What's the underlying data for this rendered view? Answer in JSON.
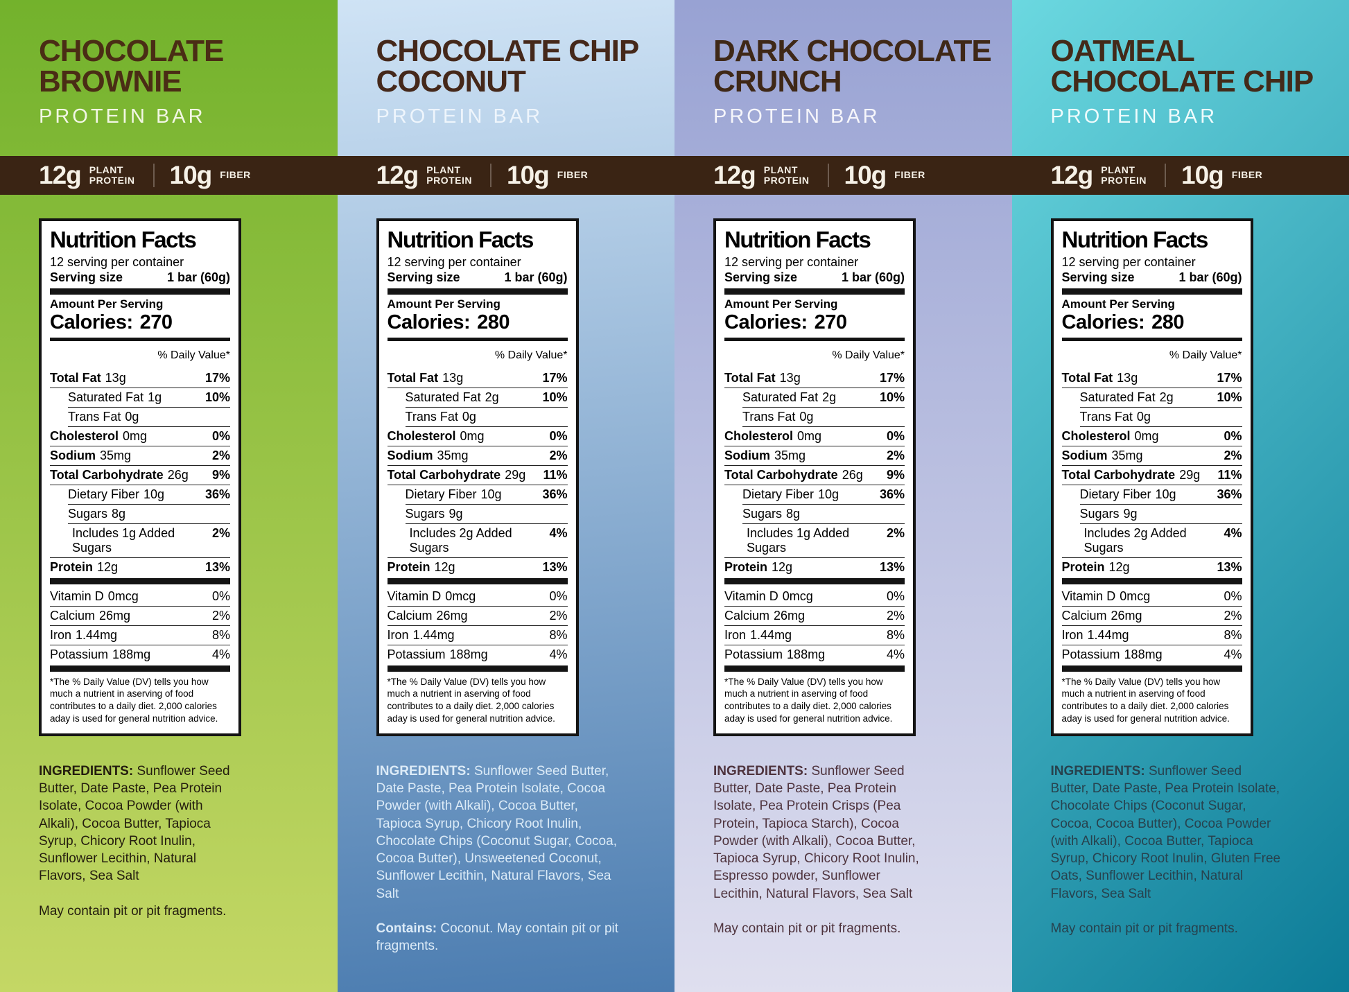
{
  "shared": {
    "subtitle": "PROTEIN BAR",
    "band": {
      "protein_value": "12g",
      "protein_label_line1": "PLANT",
      "protein_label_line2": "PROTEIN",
      "fiber_value": "10g",
      "fiber_label": "FIBER"
    },
    "label": {
      "heading": "Nutrition Facts",
      "servings": "12 serving per container",
      "serving_size_label": "Serving size",
      "serving_size_value": "1 bar (60g)",
      "amount_per_serving": "Amount Per Serving",
      "calories_prefix": "Calories:",
      "daily_value_header": "% Daily Value*",
      "footnote": "*The % Daily Value (DV) tells you how much a nutrient in aserving of food contributes to a daily diet. 2,000 calories aday is used for general nutrition advice."
    },
    "ingredients_label": "INGREDIENTS:",
    "colors": {
      "band_bg": "#3a2414",
      "band_text": "#f6f1e7",
      "band_divider": "#6e5c4f"
    }
  },
  "panels": [
    {
      "title_line1": "CHOCOLATE",
      "title_line2": "BROWNIE",
      "calories": "270",
      "rows": [
        {
          "name": "Total Fat",
          "qty": "13g",
          "dv": "17%"
        },
        {
          "name": "Saturated Fat",
          "qty": "1g",
          "dv": "10%"
        },
        {
          "name": "Trans Fat",
          "qty": "0g",
          "dv": ""
        },
        {
          "name": "Cholesterol",
          "qty": "0mg",
          "dv": "0%"
        },
        {
          "name": "Sodium",
          "qty": "35mg",
          "dv": "2%"
        },
        {
          "name": "Total Carbohydrate",
          "qty": "26g",
          "dv": "9%"
        },
        {
          "name": "Dietary Fiber",
          "qty": "10g",
          "dv": "36%"
        },
        {
          "name": "Sugars",
          "qty": "8g",
          "dv": ""
        },
        {
          "name": "Includes 1g Added Sugars",
          "qty": "",
          "dv": "2%"
        },
        {
          "name": "Protein",
          "qty": "12g",
          "dv": "13%"
        }
      ],
      "vitamins": [
        {
          "name": "Vitamin D",
          "qty": "0mcg",
          "dv": "0%"
        },
        {
          "name": "Calcium",
          "qty": "26mg",
          "dv": "2%"
        },
        {
          "name": "Iron",
          "qty": "1.44mg",
          "dv": "8%"
        },
        {
          "name": "Potassium",
          "qty": "188mg",
          "dv": "4%"
        }
      ],
      "ingredients": "Sunflower Seed Butter, Date Paste, Pea Protein Isolate, Cocoa Powder (with Alkali), Cocoa Butter, Tapioca Syrup, Chicory Root Inulin, Sunflower Lecithin, Natural Flavors, Sea Salt",
      "allergen_prefix": "",
      "allergen_body": "May contain pit or pit fragments.",
      "theme": {
        "bg_top": "#73b22c",
        "bg_bottom": "#c4d765",
        "title_color": "#4a2d15",
        "subtitle_color": "#f2f6e4",
        "ing_color": "#231c0e"
      }
    },
    {
      "title_line1": "CHOCOLATE CHIP",
      "title_line2": "COCONUT",
      "calories": "280",
      "rows": [
        {
          "name": "Total Fat",
          "qty": "13g",
          "dv": "17%"
        },
        {
          "name": "Saturated Fat",
          "qty": "2g",
          "dv": "10%"
        },
        {
          "name": "Trans Fat",
          "qty": "0g",
          "dv": ""
        },
        {
          "name": "Cholesterol",
          "qty": "0mg",
          "dv": "0%"
        },
        {
          "name": "Sodium",
          "qty": "35mg",
          "dv": "2%"
        },
        {
          "name": "Total Carbohydrate",
          "qty": "29g",
          "dv": "11%"
        },
        {
          "name": "Dietary Fiber",
          "qty": "10g",
          "dv": "36%"
        },
        {
          "name": "Sugars",
          "qty": "9g",
          "dv": ""
        },
        {
          "name": "Includes 2g Added Sugars",
          "qty": "",
          "dv": "4%"
        },
        {
          "name": "Protein",
          "qty": "12g",
          "dv": "13%"
        }
      ],
      "vitamins": [
        {
          "name": "Vitamin D",
          "qty": "0mcg",
          "dv": "0%"
        },
        {
          "name": "Calcium",
          "qty": "26mg",
          "dv": "2%"
        },
        {
          "name": "Iron",
          "qty": "1.44mg",
          "dv": "8%"
        },
        {
          "name": "Potassium",
          "qty": "188mg",
          "dv": "4%"
        }
      ],
      "ingredients": "Sunflower Seed Butter, Date Paste, Pea Protein Isolate, Cocoa Powder (with Alkali), Cocoa Butter, Tapioca Syrup, Chicory Root Inulin, Chocolate Chips (Coconut Sugar, Cocoa, Cocoa Butter), Unsweetened Coconut, Sunflower Lecithin, Natural Flavors, Sea Salt",
      "allergen_prefix": "Contains: ",
      "allergen_body": "Coconut. May contain pit or pit fragments.",
      "theme": {
        "bg_top": "#cfe3f5",
        "bg_bottom": "#4b7cb0",
        "title_color": "#45281a",
        "subtitle_color": "#eef5fc",
        "ing_color": "#dcebf7"
      }
    },
    {
      "title_line1": "DARK CHOCOLATE",
      "title_line2": "CRUNCH",
      "calories": "270",
      "rows": [
        {
          "name": "Total Fat",
          "qty": "13g",
          "dv": "17%"
        },
        {
          "name": "Saturated Fat",
          "qty": "2g",
          "dv": "10%"
        },
        {
          "name": "Trans Fat",
          "qty": "0g",
          "dv": ""
        },
        {
          "name": "Cholesterol",
          "qty": "0mg",
          "dv": "0%"
        },
        {
          "name": "Sodium",
          "qty": "35mg",
          "dv": "2%"
        },
        {
          "name": "Total Carbohydrate",
          "qty": "26g",
          "dv": "9%"
        },
        {
          "name": "Dietary Fiber",
          "qty": "10g",
          "dv": "36%"
        },
        {
          "name": "Sugars",
          "qty": "8g",
          "dv": ""
        },
        {
          "name": "Includes 1g Added Sugars",
          "qty": "",
          "dv": "2%"
        },
        {
          "name": "Protein",
          "qty": "12g",
          "dv": "13%"
        }
      ],
      "vitamins": [
        {
          "name": "Vitamin D",
          "qty": "0mcg",
          "dv": "0%"
        },
        {
          "name": "Calcium",
          "qty": "26mg",
          "dv": "2%"
        },
        {
          "name": "Iron",
          "qty": "1.44mg",
          "dv": "8%"
        },
        {
          "name": "Potassium",
          "qty": "188mg",
          "dv": "4%"
        }
      ],
      "ingredients": "Sunflower Seed Butter, Date Paste, Pea Protein Isolate, Pea Protein Crisps (Pea Protein, Tapioca Starch), Cocoa Powder (with Alkali), Cocoa Butter, Tapioca Syrup, Chicory Root Inulin, Espresso powder, Sunflower Lecithin, Natural Flavors, Sea Salt",
      "allergen_prefix": "",
      "allergen_body": "May contain pit or pit fragments.",
      "theme": {
        "bg_top": "#98a2d3",
        "bg_bottom": "#dfdfef",
        "title_color": "#3f2817",
        "subtitle_color": "#f6f6fb",
        "ing_color": "#4e333d"
      }
    },
    {
      "title_line1": "OATMEAL",
      "title_line2": "CHOCOLATE CHIP",
      "calories": "280",
      "rows": [
        {
          "name": "Total Fat",
          "qty": "13g",
          "dv": "17%"
        },
        {
          "name": "Saturated Fat",
          "qty": "2g",
          "dv": "10%"
        },
        {
          "name": "Trans Fat",
          "qty": "0g",
          "dv": ""
        },
        {
          "name": "Cholesterol",
          "qty": "0mg",
          "dv": "0%"
        },
        {
          "name": "Sodium",
          "qty": "35mg",
          "dv": "2%"
        },
        {
          "name": "Total Carbohydrate",
          "qty": "29g",
          "dv": "11%"
        },
        {
          "name": "Dietary Fiber",
          "qty": "10g",
          "dv": "36%"
        },
        {
          "name": "Sugars",
          "qty": "9g",
          "dv": ""
        },
        {
          "name": "Includes 2g Added Sugars",
          "qty": "",
          "dv": "4%"
        },
        {
          "name": "Protein",
          "qty": "12g",
          "dv": "13%"
        }
      ],
      "vitamins": [
        {
          "name": "Vitamin D",
          "qty": "0mcg",
          "dv": "0%"
        },
        {
          "name": "Calcium",
          "qty": "26mg",
          "dv": "2%"
        },
        {
          "name": "Iron",
          "qty": "1.44mg",
          "dv": "8%"
        },
        {
          "name": "Potassium",
          "qty": "188mg",
          "dv": "4%"
        }
      ],
      "ingredients": "Sunflower Seed Butter, Date Paste, Pea Protein Isolate, Chocolate Chips (Coconut Sugar, Cocoa, Cocoa Butter), Cocoa Powder (with Alkali), Cocoa Butter, Tapioca Syrup, Chicory Root Inulin, Gluten Free Oats, Sunflower Lecithin, Natural Flavors, Sea Salt",
      "allergen_prefix": "",
      "allergen_body": "May contain pit or pit fragments.",
      "theme": {
        "bg_top": "#6bd8e0",
        "bg_bottom": "#0c7b97",
        "title_color": "#432a19",
        "subtitle_color": "#eefbfc",
        "ing_color": "#27424e"
      }
    }
  ]
}
